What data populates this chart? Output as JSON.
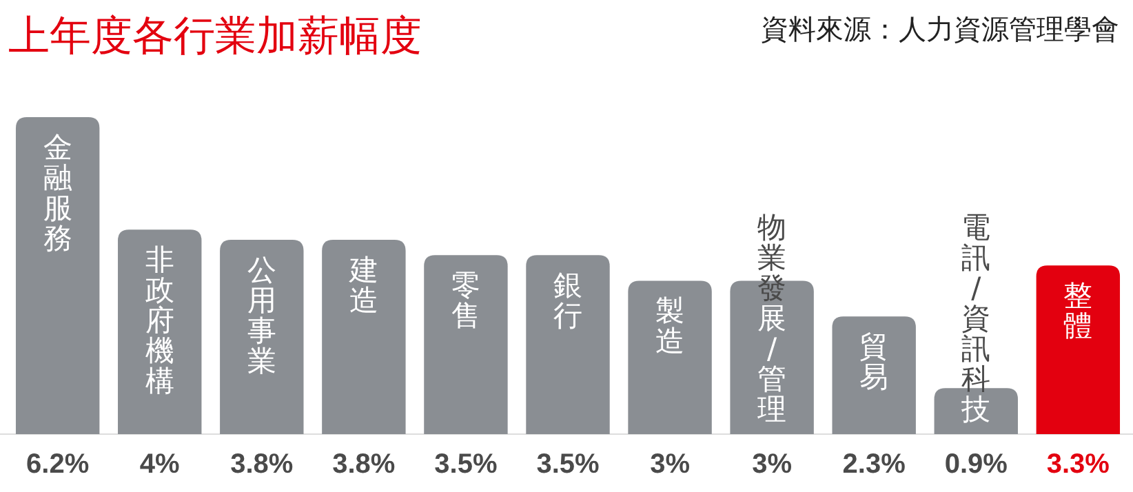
{
  "chart_data": {
    "type": "bar",
    "title": "上年度各行業加薪幅度",
    "annotations": [
      "資料來源：人力資源管理學會"
    ],
    "categories": [
      "金融服務",
      "非政府機構",
      "公用事業",
      "建造",
      "零售",
      "銀行",
      "製造",
      "物業發展/管理",
      "貿易",
      "電訊/資訊科技",
      "整體"
    ],
    "values": [
      6.2,
      4,
      3.8,
      3.8,
      3.5,
      3.5,
      3,
      3,
      2.3,
      0.9,
      3.3
    ],
    "colors": [
      "#8a8e93",
      "#8a8e93",
      "#8a8e93",
      "#8a8e93",
      "#8a8e93",
      "#8a8e93",
      "#8a8e93",
      "#8a8e93",
      "#8a8e93",
      "#8a8e93",
      "#e3000f"
    ],
    "value_labels": [
      "6.2%",
      "4%",
      "3.8%",
      "3.8%",
      "3.5%",
      "3.5%",
      "3%",
      "3%",
      "2.3%",
      "0.9%",
      "3.3%"
    ]
  }
}
